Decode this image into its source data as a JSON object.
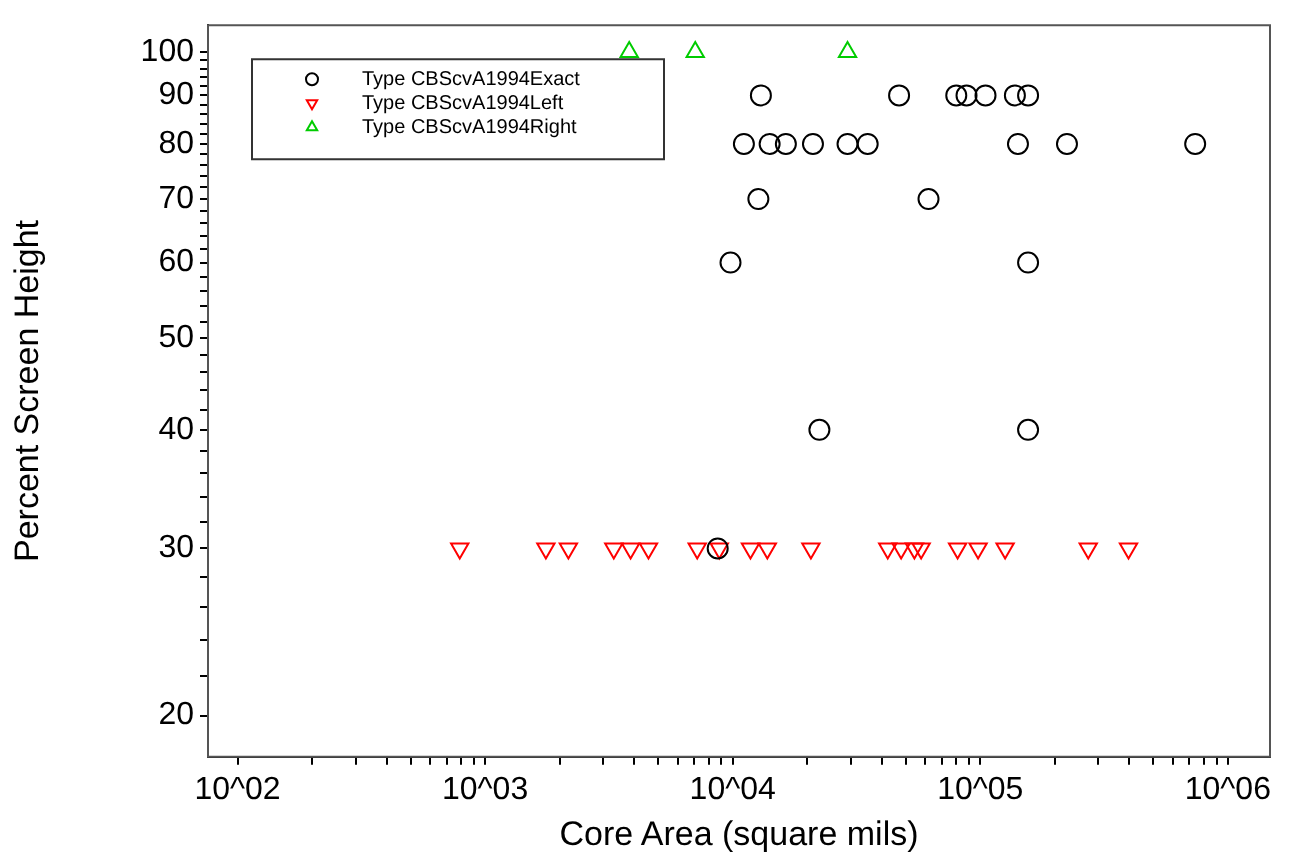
{
  "chart_data": {
    "type": "scatter",
    "xlabel": "Core Area (square mils)",
    "ylabel": "Percent Screen Height",
    "log": "xy",
    "grid": false,
    "legend": "top left",
    "xlim": [
      76,
      1480000
    ],
    "ylim": [
      18.1,
      106.7
    ],
    "xticks": [
      {
        "value": 100,
        "label": "10^02"
      },
      {
        "value": 200,
        "label": null
      },
      {
        "value": 300,
        "label": null
      },
      {
        "value": 400,
        "label": null
      },
      {
        "value": 500,
        "label": null
      },
      {
        "value": 600,
        "label": null
      },
      {
        "value": 700,
        "label": null
      },
      {
        "value": 800,
        "label": null
      },
      {
        "value": 900,
        "label": null
      },
      {
        "value": 1000,
        "label": "10^03"
      },
      {
        "value": 2000,
        "label": null
      },
      {
        "value": 3000,
        "label": null
      },
      {
        "value": 4000,
        "label": null
      },
      {
        "value": 5000,
        "label": null
      },
      {
        "value": 6000,
        "label": null
      },
      {
        "value": 7000,
        "label": null
      },
      {
        "value": 8000,
        "label": null
      },
      {
        "value": 9000,
        "label": null
      },
      {
        "value": 10000,
        "label": "10^04"
      },
      {
        "value": 20000,
        "label": null
      },
      {
        "value": 30000,
        "label": null
      },
      {
        "value": 40000,
        "label": null
      },
      {
        "value": 50000,
        "label": null
      },
      {
        "value": 60000,
        "label": null
      },
      {
        "value": 70000,
        "label": null
      },
      {
        "value": 80000,
        "label": null
      },
      {
        "value": 90000,
        "label": null
      },
      {
        "value": 100000,
        "label": "10^05"
      },
      {
        "value": 200000,
        "label": null
      },
      {
        "value": 300000,
        "label": null
      },
      {
        "value": 400000,
        "label": null
      },
      {
        "value": 500000,
        "label": null
      },
      {
        "value": 600000,
        "label": null
      },
      {
        "value": 700000,
        "label": null
      },
      {
        "value": 800000,
        "label": null
      },
      {
        "value": 900000,
        "label": null
      },
      {
        "value": 1000000,
        "label": "10^06"
      }
    ],
    "yticks": [
      20,
      {
        "value": 22,
        "label": null
      },
      {
        "value": 24,
        "label": null
      },
      {
        "value": 26,
        "label": null
      },
      {
        "value": 28,
        "label": null
      },
      30,
      {
        "value": 32,
        "label": null
      },
      {
        "value": 34,
        "label": null
      },
      {
        "value": 36,
        "label": null
      },
      {
        "value": 38,
        "label": null
      },
      40,
      {
        "value": 42,
        "label": null
      },
      {
        "value": 44,
        "label": null
      },
      {
        "value": 46,
        "label": null
      },
      {
        "value": 48,
        "label": null
      },
      50,
      {
        "value": 52,
        "label": null
      },
      {
        "value": 54,
        "label": null
      },
      {
        "value": 56,
        "label": null
      },
      {
        "value": 58,
        "label": null
      },
      60,
      {
        "value": 62,
        "label": null
      },
      {
        "value": 64,
        "label": null
      },
      {
        "value": 66,
        "label": null
      },
      {
        "value": 68,
        "label": null
      },
      70,
      {
        "value": 72,
        "label": null
      },
      {
        "value": 74,
        "label": null
      },
      {
        "value": 76,
        "label": null
      },
      {
        "value": 78,
        "label": null
      },
      80,
      {
        "value": 82,
        "label": null
      },
      {
        "value": 84,
        "label": null
      },
      {
        "value": 86,
        "label": null
      },
      {
        "value": 88,
        "label": null
      },
      90,
      {
        "value": 92,
        "label": null
      },
      {
        "value": 94,
        "label": null
      },
      {
        "value": 96,
        "label": null
      },
      {
        "value": 98,
        "label": null
      },
      100
    ],
    "series": [
      {
        "name": "Type CBScvA1994Exact",
        "color": "#000000",
        "marker": "circle",
        "x": [
          13000,
          47000,
          80000,
          88000,
          105000,
          138000,
          156000,
          11100,
          14100,
          16400,
          21100,
          29100,
          35100,
          142000,
          224000,
          738000,
          12700,
          61800,
          9800,
          156000,
          22400,
          156000,
          8700
        ],
        "values": [
          90,
          90,
          90,
          90,
          90,
          90,
          90,
          80,
          80,
          80,
          80,
          80,
          80,
          80,
          80,
          80,
          70,
          70,
          60,
          60,
          40,
          40,
          30
        ]
      },
      {
        "name": "Type CBScvA1994Left",
        "color": "#ff0000",
        "marker": "triangle-down",
        "x": [
          790,
          1760,
          2170,
          3310,
          3870,
          4570,
          7190,
          8830,
          11800,
          13800,
          20700,
          42300,
          47900,
          54200,
          57700,
          81000,
          98000,
          126000,
          273000,
          397000
        ],
        "values": [
          30,
          30,
          30,
          30,
          30,
          30,
          30,
          30,
          30,
          30,
          30,
          30,
          30,
          30,
          30,
          30,
          30,
          30,
          30,
          30
        ]
      },
      {
        "name": "Type CBScvA1994Right",
        "color": "#00cc00",
        "marker": "triangle",
        "x": [
          3820,
          7060,
          29100
        ],
        "values": [
          100,
          100,
          100
        ]
      }
    ]
  }
}
